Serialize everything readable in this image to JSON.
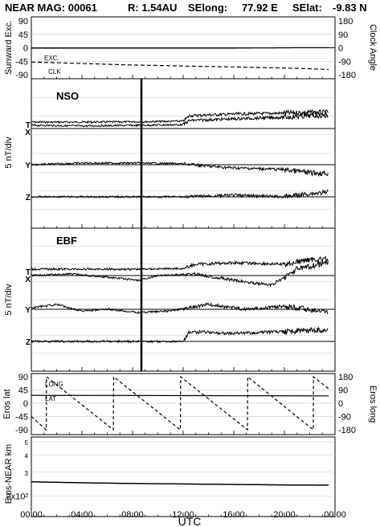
{
  "header": {
    "mission": "NEAR MAG: 00061",
    "r": "R: 1.54AU",
    "selong": "SElong:",
    "selong_val": "77.92 E",
    "selat": "SElat:",
    "selat_val": "-9.83 N"
  },
  "chart_data": [
    {
      "type": "line",
      "ylabel": "Sunward Exc.",
      "ylabel_right": "Clock Angle",
      "ylim": [
        -90,
        90
      ],
      "yticks": [
        "90",
        "45",
        "0",
        "-45",
        "-90"
      ],
      "yticks_right": [
        "180",
        "90",
        "0",
        "-90",
        "-180"
      ],
      "series": [
        {
          "name": "EXC.",
          "style": "solid",
          "x": [
            0,
            2,
            4,
            6,
            8,
            10,
            12,
            14,
            16,
            18,
            20,
            22,
            23.5
          ],
          "values": [
            -1,
            -1,
            -1,
            -1,
            -1,
            -1,
            -1,
            -1,
            -1,
            -0.5,
            0,
            0.5,
            0.5
          ]
        },
        {
          "name": "CLK",
          "style": "dashed",
          "axis": "right",
          "x": [
            0,
            2,
            4,
            6,
            8,
            10,
            12,
            14,
            16,
            18,
            20,
            22,
            23.5
          ],
          "values": [
            -95,
            -100,
            -105,
            -110,
            -115,
            -118,
            -122,
            -125,
            -128,
            -132,
            -135,
            -140,
            -145
          ]
        }
      ]
    },
    {
      "type": "line",
      "title": "NSO",
      "ylabel": "5 nT/div",
      "channels": [
        "T",
        "X",
        "Y",
        "Z"
      ],
      "time_marker": 8.7,
      "series": [
        {
          "name": "T",
          "x": [
            0,
            4,
            8.5,
            12,
            12.5,
            16,
            20,
            22,
            23.5
          ],
          "values": [
            2.0,
            2.0,
            2.1,
            2.3,
            4.0,
            4.5,
            4.8,
            5.0,
            5.0
          ]
        },
        {
          "name": "X",
          "x": [
            0,
            4,
            8.5,
            12,
            12.5,
            16,
            20,
            22,
            23.5
          ],
          "values": [
            1.0,
            0.8,
            1.0,
            1.2,
            2.5,
            3.0,
            3.5,
            4.0,
            4.0
          ]
        },
        {
          "name": "Y",
          "x": [
            0,
            4,
            8.5,
            12,
            14,
            16,
            20,
            22,
            23.5
          ],
          "values": [
            0,
            0.5,
            0.5,
            0.3,
            -0.5,
            -1.0,
            -1.5,
            -2.5,
            -2.8
          ]
        },
        {
          "name": "Z",
          "x": [
            0,
            4,
            8.5,
            12,
            14,
            16,
            20,
            22,
            23.5
          ],
          "values": [
            0,
            0,
            0,
            0,
            0.3,
            0.5,
            0,
            1.0,
            1.5
          ]
        }
      ]
    },
    {
      "type": "line",
      "title": "EBF",
      "ylabel": "5 nT/div",
      "channels": [
        "T",
        "X",
        "Y",
        "Z"
      ],
      "time_marker": 8.7,
      "series": [
        {
          "name": "T",
          "x": [
            0,
            4,
            8.5,
            12,
            13,
            16,
            20,
            22,
            23.5
          ],
          "values": [
            2.0,
            2.0,
            2.0,
            2.2,
            3.5,
            4.0,
            3.5,
            5.0,
            5.0
          ]
        },
        {
          "name": "X",
          "x": [
            0,
            3,
            6,
            8.5,
            10,
            13,
            16,
            19,
            21,
            23.5
          ],
          "values": [
            0,
            0.5,
            -0.5,
            -1.5,
            0,
            0.5,
            -1.5,
            -3.0,
            2.0,
            4.0
          ]
        },
        {
          "name": "Y",
          "x": [
            0,
            2,
            4,
            6,
            8.5,
            11,
            14,
            17,
            20,
            23.5
          ],
          "values": [
            0.5,
            1.5,
            -0.5,
            0,
            -1.0,
            -0.5,
            1.5,
            0,
            1.0,
            -1.0
          ]
        },
        {
          "name": "Z",
          "x": [
            0,
            4,
            8.5,
            12,
            12.5,
            16,
            20,
            22,
            23.5
          ],
          "values": [
            0,
            0,
            0,
            0,
            3.0,
            2.5,
            3.0,
            3.5,
            3.5
          ]
        }
      ]
    },
    {
      "type": "line",
      "ylabel": "Eros lat",
      "ylabel_right": "Eros long",
      "ylim": [
        -90,
        90
      ],
      "yticks": [
        "90",
        "45",
        "0",
        "-45",
        "-90"
      ],
      "yticks_right": [
        "180",
        "90",
        "0",
        "-90",
        "-180"
      ],
      "series": [
        {
          "name": "LAT",
          "style": "solid",
          "x": [
            0,
            23.5
          ],
          "values": [
            27,
            25
          ]
        },
        {
          "name": "LONG",
          "style": "dashed",
          "axis": "right",
          "sawtooth_peaks_hr": [
            1.2,
            6.5,
            11.8,
            17.1,
            22.3
          ],
          "period_hr": 5.27,
          "range": [
            -180,
            180
          ]
        }
      ]
    },
    {
      "type": "line",
      "ylabel": "Eros-NEAR km",
      "yscale": "log",
      "yticks": [
        "5",
        "4",
        "3",
        "2x10²"
      ],
      "series": [
        {
          "name": "Eros-NEAR",
          "x": [
            0,
            4,
            8,
            12,
            16,
            20,
            23.5
          ],
          "values": [
            255,
            251,
            248,
            246,
            244,
            242,
            241
          ]
        }
      ]
    }
  ],
  "xaxis": {
    "label": "UTC",
    "ticks": [
      "00:00",
      "04:00",
      "08:00",
      "12:00",
      "16:00",
      "20:00",
      "00:00"
    ]
  },
  "panel_labels": {
    "exc": "EXC.",
    "clk": "CLK",
    "long": "LONG",
    "lat": "LAT"
  }
}
